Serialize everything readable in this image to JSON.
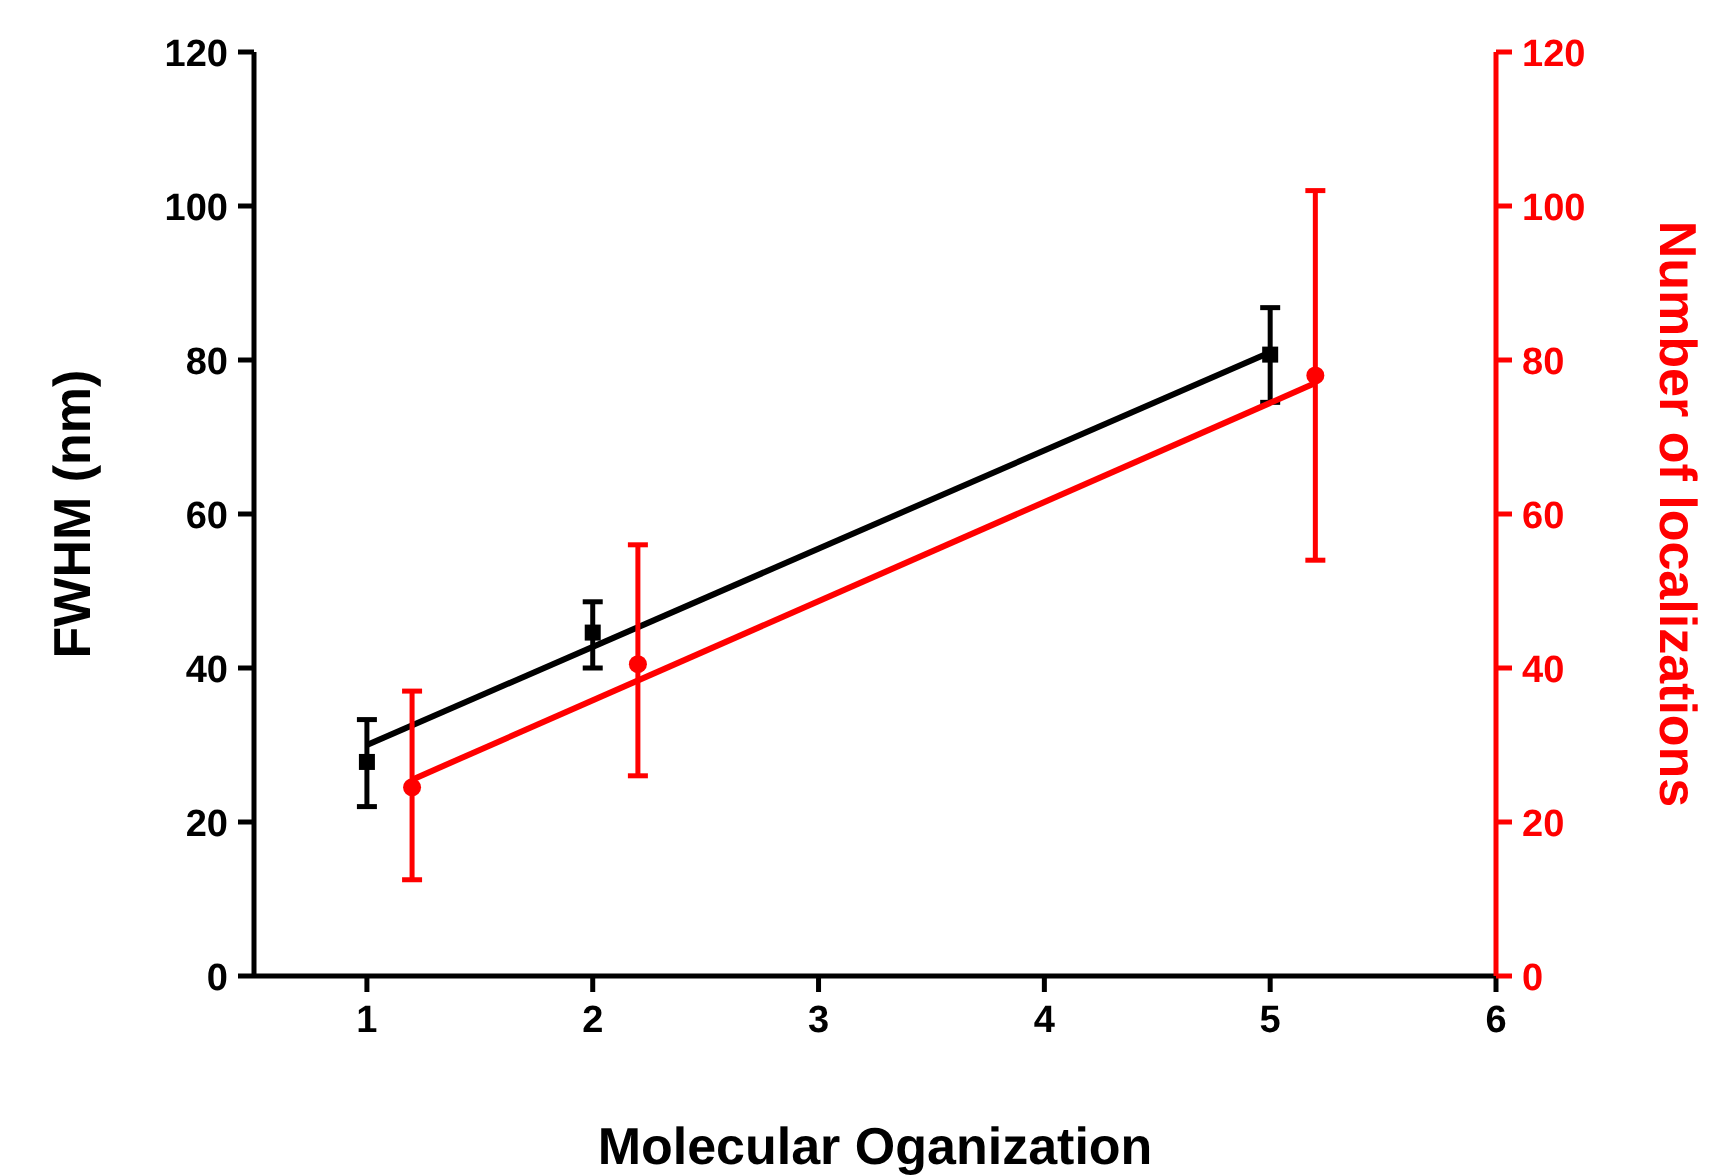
{
  "chart_data": {
    "type": "scatter",
    "xlabel": "Molecular Oganization",
    "ylabel": "FWHM (nm)",
    "y2label": "Number of localizations",
    "xlim": [
      0.5,
      6
    ],
    "xticks": [
      1,
      2,
      3,
      4,
      5,
      6
    ],
    "ylim": [
      0,
      120
    ],
    "yticks": [
      0,
      20,
      40,
      60,
      80,
      100,
      120
    ],
    "y2lim": [
      0,
      120
    ],
    "y2ticks": [
      0,
      20,
      40,
      60,
      80,
      100,
      120
    ],
    "grid": false,
    "line_style": "solid",
    "series": [
      {
        "color": "#000000",
        "marker": "square",
        "x": [
          1,
          2,
          5
        ],
        "values": [
          27.8,
          44.6,
          80.7
        ],
        "errors": [
          [
            22,
            33.3
          ],
          [
            40,
            48.6
          ],
          [
            74.5,
            86.8
          ]
        ]
      },
      {
        "type": "line",
        "color": "#000000",
        "marker": "none",
        "x": [
          1,
          5
        ],
        "values": [
          30,
          81
        ]
      },
      {
        "axis": "y2",
        "color": "#ff0000",
        "marker": "circle",
        "x": [
          1.2,
          2.2,
          5.2
        ],
        "values": [
          24.5,
          40.5,
          78
        ],
        "errors": [
          [
            12.5,
            37
          ],
          [
            26,
            56
          ],
          [
            54,
            102
          ]
        ]
      },
      {
        "type": "line",
        "axis": "y2",
        "color": "#ff0000",
        "marker": "none",
        "x": [
          1.2,
          5.2
        ],
        "values": [
          25.5,
          77
        ]
      }
    ]
  }
}
